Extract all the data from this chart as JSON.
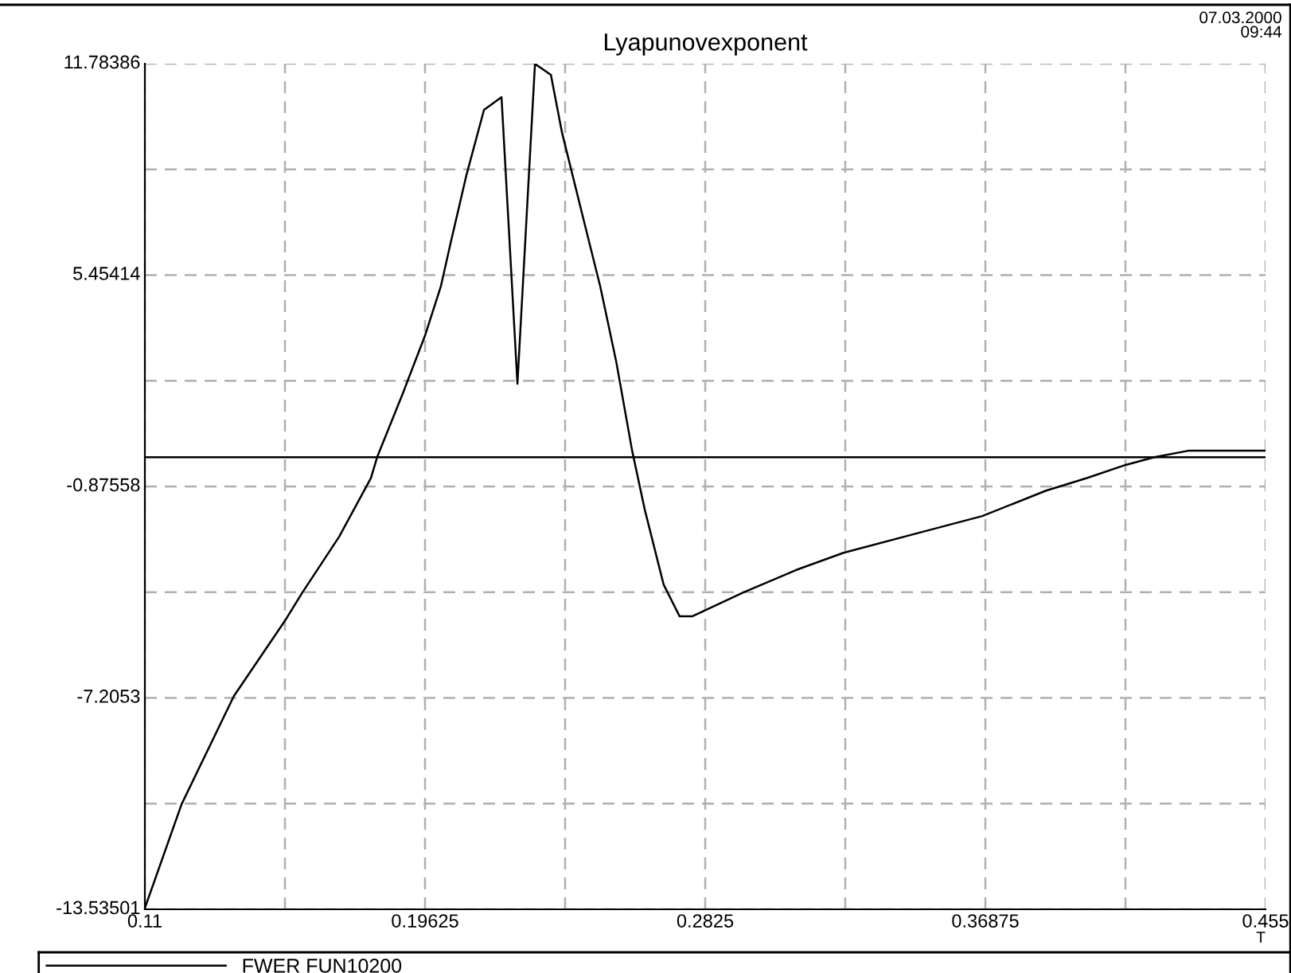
{
  "chart_data": {
    "type": "line",
    "title": "Lyapunovexponent",
    "xlabel": "T",
    "annotations": [
      "07.03.2000\n09:44"
    ],
    "x": [
      0.11,
      0.1213,
      0.1374,
      0.1531,
      0.1585,
      0.1698,
      0.1796,
      0.1815,
      0.1894,
      0.1962,
      0.2011,
      0.2041,
      0.209,
      0.2144,
      0.2198,
      0.2247,
      0.2301,
      0.235,
      0.2384,
      0.2453,
      0.2502,
      0.2551,
      0.26,
      0.2639,
      0.2697,
      0.2746,
      0.2786,
      0.2942,
      0.3104,
      0.3251,
      0.3511,
      0.3678,
      0.3874,
      0.4001,
      0.4119,
      0.4207,
      0.4315,
      0.455
    ],
    "series": [
      {
        "name": "FWER FUN10200",
        "color": "#000000",
        "values": [
          -13.5,
          -10.39,
          -7.15,
          -4.9,
          -4.05,
          -2.38,
          -0.62,
          0.0,
          1.91,
          3.63,
          5.11,
          6.4,
          8.45,
          10.4,
          10.78,
          2.2,
          11.78,
          11.45,
          9.73,
          7.02,
          5.11,
          2.87,
          0.2,
          -1.57,
          -3.81,
          -4.76,
          -4.76,
          -4.05,
          -3.38,
          -2.86,
          -2.19,
          -1.76,
          -1.0,
          -0.62,
          -0.23,
          0.0,
          0.2,
          0.2
        ]
      }
    ],
    "xlim": [
      0.11,
      0.455
    ],
    "xticks": [
      0.11,
      {
        "value": 0.153125,
        "label": null
      },
      0.19625,
      {
        "value": 0.239375,
        "label": null
      },
      0.2825,
      {
        "value": 0.325625,
        "label": null
      },
      0.36875,
      {
        "value": 0.411875,
        "label": null
      },
      0.455
    ],
    "ylim": [
      -13.53501,
      11.78386
    ],
    "yticks": [
      -13.53501,
      {
        "value": -10.370155,
        "label": null
      },
      -7.2053,
      {
        "value": -4.04044,
        "label": null
      },
      -0.87558,
      {
        "value": 2.28928,
        "label": null
      },
      5.45414,
      {
        "value": 8.619,
        "label": null
      },
      11.78386
    ],
    "ref_lines": [
      {
        "axis": "y",
        "value": 0,
        "color": "#000000"
      }
    ],
    "grid": true,
    "legend": "bottom",
    "marker": "none",
    "line_style": "solid"
  }
}
